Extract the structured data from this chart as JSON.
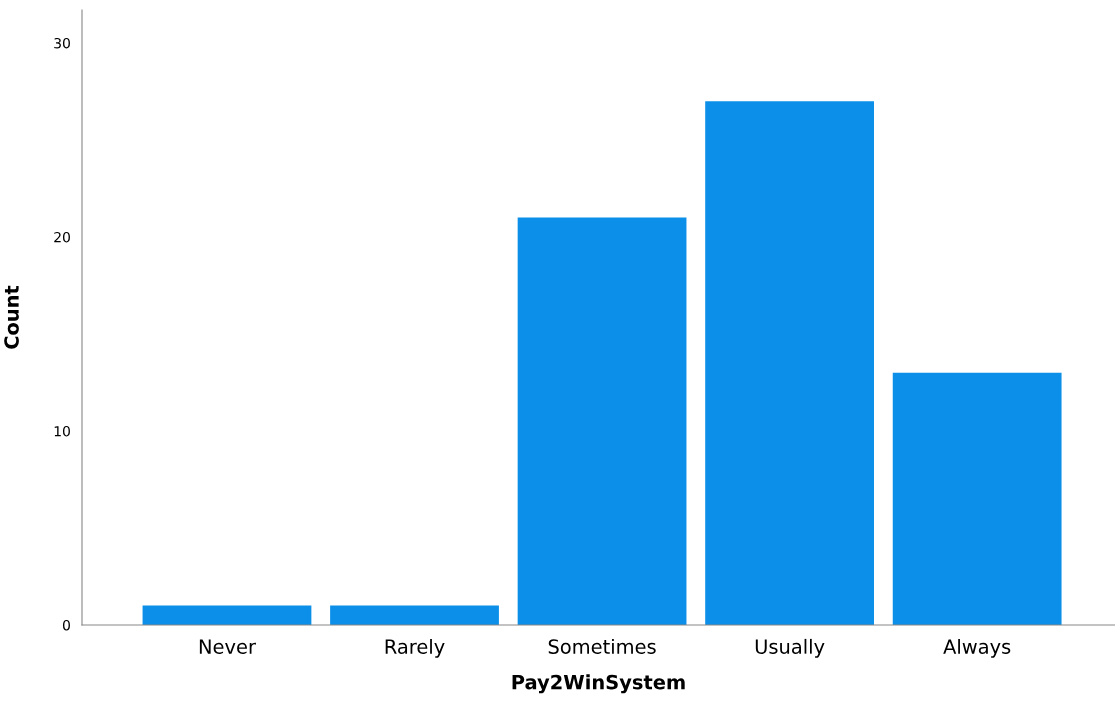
{
  "chart_data": {
    "type": "bar",
    "xlabel": "Pay2WinSystem",
    "ylabel": "Count",
    "categories": [
      "Never",
      "Rarely",
      "Sometimes",
      "Usually",
      "Always"
    ],
    "values": [
      1,
      1,
      21,
      27,
      13
    ],
    "color": "#0b8fe8",
    "ylim": [
      0,
      31.7
    ],
    "yticks": [
      0,
      10,
      20,
      30
    ],
    "grid": false,
    "legend": false
  }
}
